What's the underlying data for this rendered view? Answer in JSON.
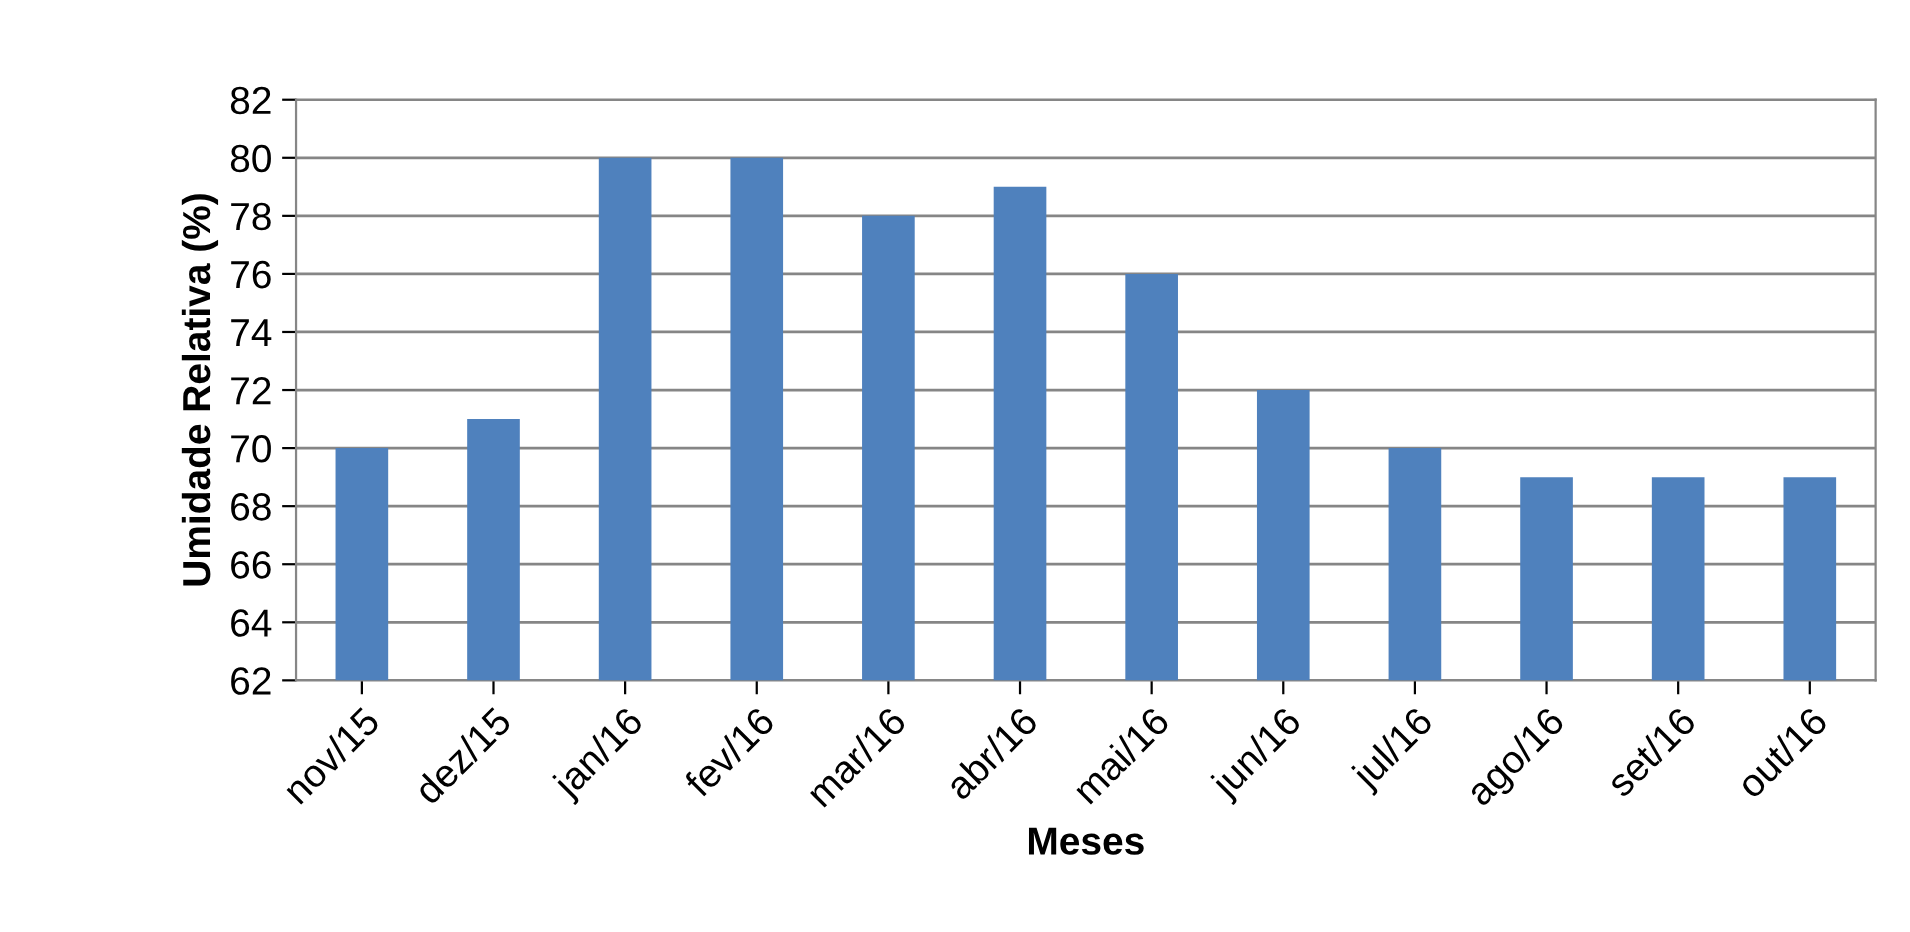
{
  "chart_data": {
    "type": "bar",
    "xlabel": "Meses",
    "ylabel": "Umidade Relativa (%)",
    "categories": [
      "nov/15",
      "dez/15",
      "jan/16",
      "fev/16",
      "mar/16",
      "abr/16",
      "mai/16",
      "jun/16",
      "jul/16",
      "ago/16",
      "set/16",
      "out/16"
    ],
    "values": [
      70,
      71,
      80,
      80,
      78,
      79,
      76,
      72,
      70,
      69,
      69,
      69
    ],
    "color": "#4f81bd",
    "ylim": [
      62,
      82
    ],
    "yticks": [
      62,
      64,
      66,
      68,
      70,
      72,
      74,
      76,
      78,
      80,
      82
    ],
    "grid": "y"
  }
}
